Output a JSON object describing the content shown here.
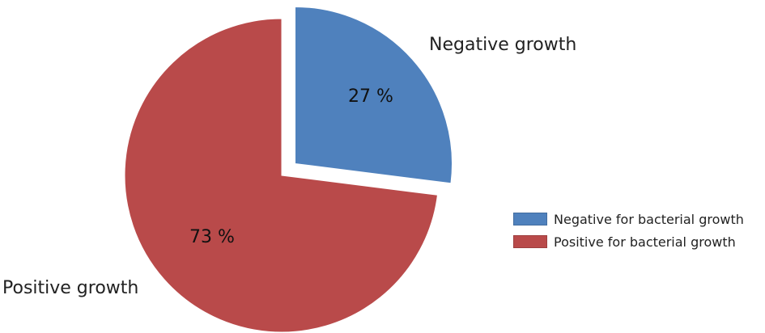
{
  "chart_data": {
    "type": "pie",
    "title": "",
    "slices": [
      {
        "label": "Negative growth",
        "percent_label": "27 %",
        "value": 27,
        "legend": "Negative for bacterial growth",
        "color": "#4f81bd",
        "exploded": true
      },
      {
        "label": "Positive growth",
        "percent_label": "73 %",
        "value": 73,
        "legend": "Positive for bacterial growth",
        "color": "#b94a4a",
        "exploded": false
      }
    ],
    "legend_position": "right"
  }
}
